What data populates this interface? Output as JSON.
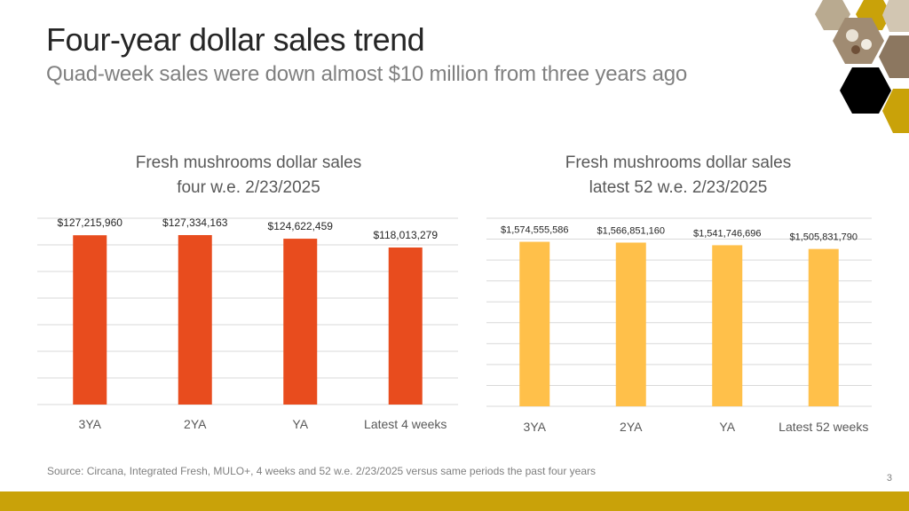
{
  "slide": {
    "title": "Four-year dollar sales trend",
    "subtitle": "Quad-week sales were down almost $10 million from three years ago",
    "source": "Source: Circana, Integrated Fresh, MULO+, 4 weeks and 52 w.e. 2/23/2025 versus same periods the past four years",
    "page_number": "3"
  },
  "colors": {
    "left_bar": "#e84c1e",
    "right_bar": "#ffc04a",
    "footer": "#c9a209",
    "hex_dark": "#000000",
    "hex_gold": "#c9a209"
  },
  "chart_data": [
    {
      "type": "bar",
      "title_lines": [
        "Fresh mushrooms dollar sales",
        "four w.e. 2/23/2025"
      ],
      "categories": [
        "3YA",
        "2YA",
        "YA",
        "Latest 4 weeks"
      ],
      "values": [
        127215960,
        127334163,
        124622459,
        118013279
      ],
      "value_labels": [
        "$127,215,960",
        "$127,334,163",
        "$124,622,459",
        "$118,013,279"
      ],
      "ylim": [
        0,
        140000000
      ],
      "grid": true,
      "color": "#e84c1e"
    },
    {
      "type": "bar",
      "title_lines": [
        "Fresh mushrooms dollar sales",
        "latest 52 w.e. 2/23/2025"
      ],
      "categories": [
        "3YA",
        "2YA",
        "YA",
        "Latest 52 weeks"
      ],
      "values": [
        1574555586,
        1566851160,
        1541746696,
        1505831790
      ],
      "value_labels": [
        "$1,574,555,586",
        "$1,566,851,160",
        "$1,541,746,696",
        "$1,505,831,790"
      ],
      "ylim": [
        0,
        1800000000
      ],
      "grid": true,
      "color": "#ffc04a"
    }
  ]
}
